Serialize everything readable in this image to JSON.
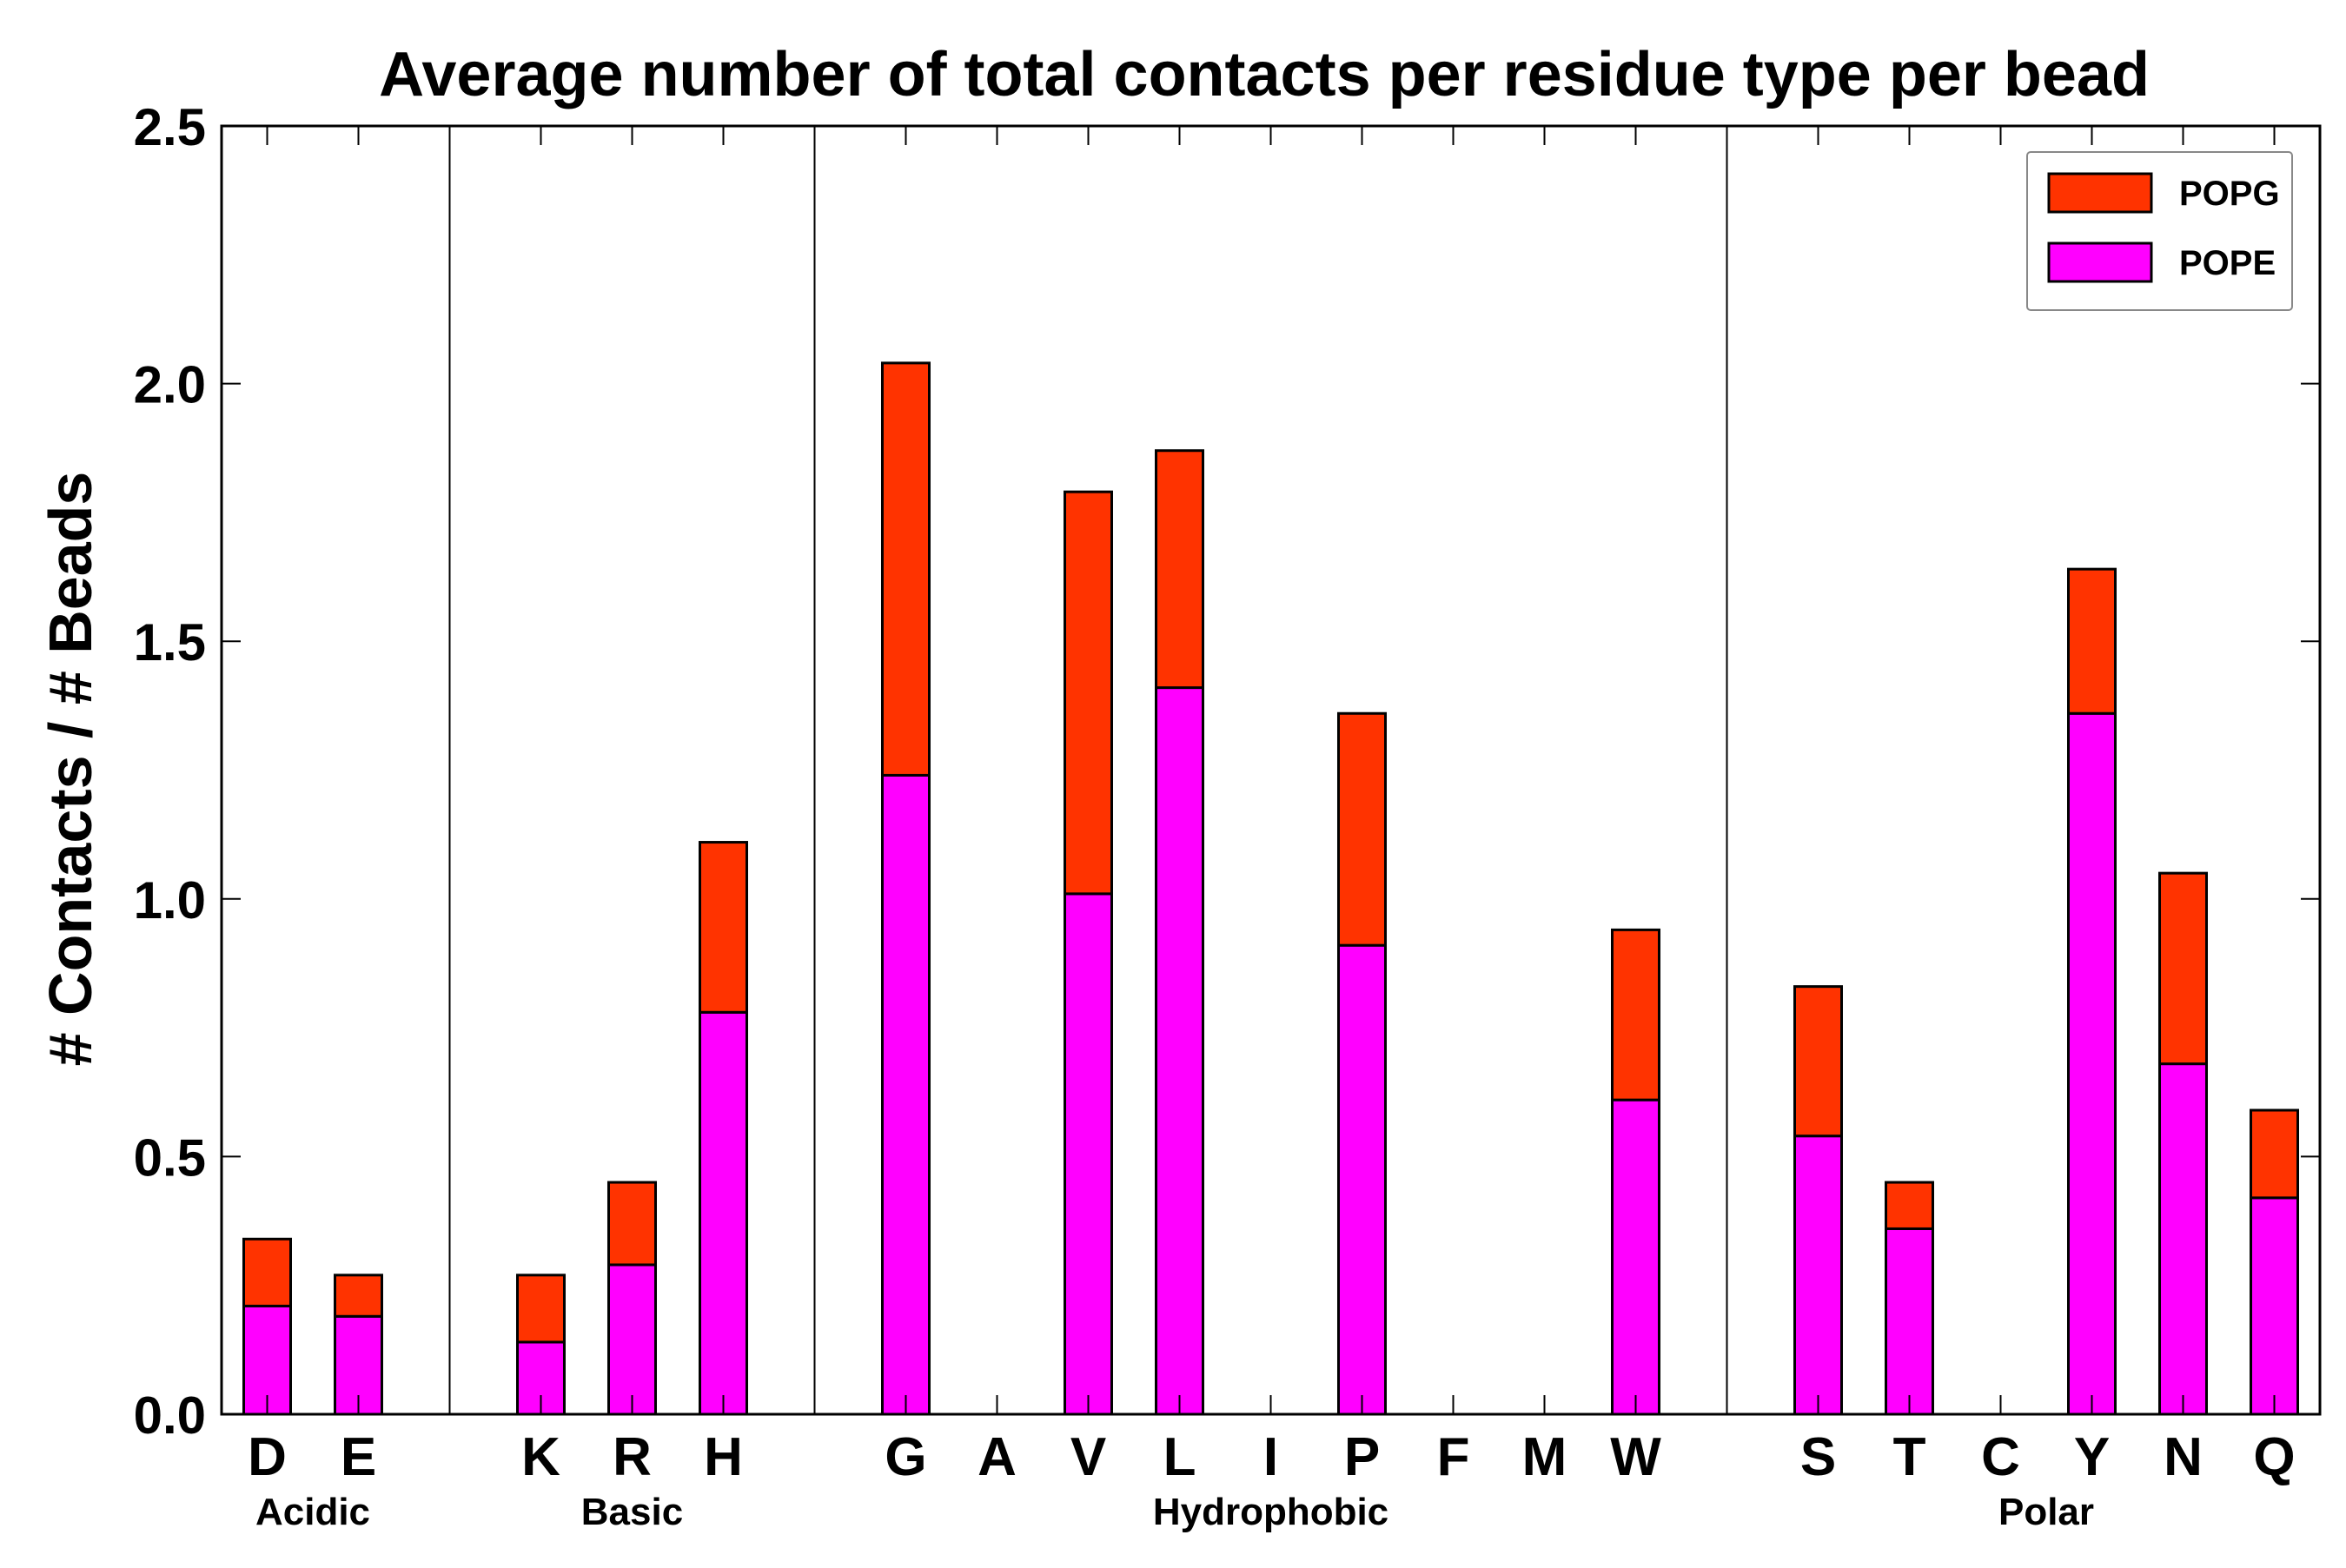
{
  "chart_data": {
    "type": "bar",
    "stacked": true,
    "title": "Average number of total contacts per residue type per bead",
    "xlabel": "",
    "ylabel": "# Contacts / # Beads",
    "ylim": [
      0,
      2.5
    ],
    "yticks": [
      "0.0",
      "0.5",
      "1.0",
      "1.5",
      "2.0",
      "2.5"
    ],
    "legend_position": "top-right",
    "colors": {
      "POPG": "#ff3300",
      "POPE": "#ff00ff"
    },
    "categories": [
      "D",
      "E",
      "",
      "K",
      "R",
      "H",
      "",
      "G",
      "A",
      "V",
      "L",
      "I",
      "P",
      "F",
      "M",
      "W",
      "",
      "S",
      "T",
      "C",
      "Y",
      "N",
      "Q"
    ],
    "series": [
      {
        "name": "POPE",
        "values": [
          0.21,
          0.19,
          0.0,
          0.14,
          0.29,
          0.78,
          0.0,
          1.24,
          0.0,
          1.01,
          1.41,
          0.0,
          0.91,
          0.0,
          0.0,
          0.61,
          0.0,
          0.54,
          0.36,
          0.0,
          1.36,
          0.68,
          0.42
        ]
      },
      {
        "name": "POPG",
        "values": [
          0.13,
          0.08,
          0.0,
          0.13,
          0.16,
          0.33,
          0.0,
          0.8,
          0.0,
          0.78,
          0.46,
          0.0,
          0.45,
          0.0,
          0.0,
          0.33,
          0.0,
          0.29,
          0.09,
          0.0,
          0.28,
          0.37,
          0.17
        ]
      }
    ],
    "groups": [
      {
        "label": "Acidic",
        "start": 0,
        "end": 1
      },
      {
        "label": "Basic",
        "start": 3,
        "end": 5
      },
      {
        "label": "Hydrophobic",
        "start": 7,
        "end": 15
      },
      {
        "label": "Polar",
        "start": 17,
        "end": 22
      }
    ],
    "separators_after": [
      2,
      6,
      16
    ]
  }
}
